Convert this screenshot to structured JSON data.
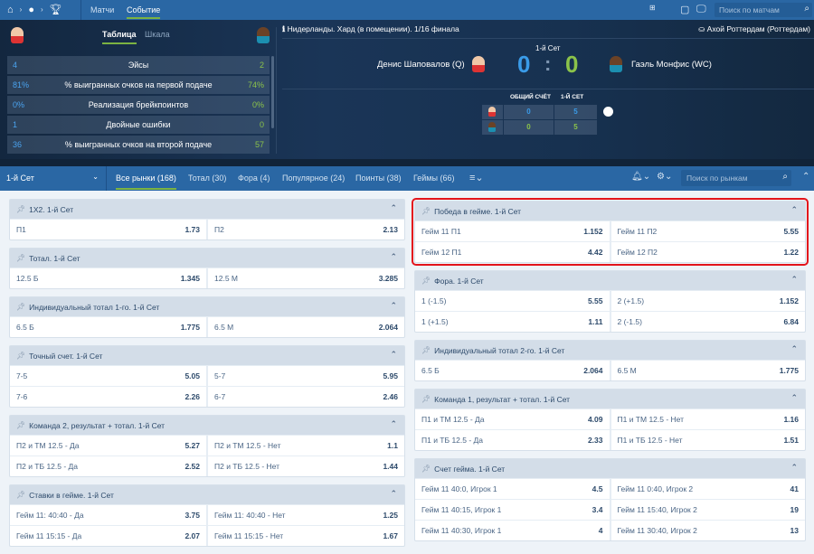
{
  "topnav": {
    "tabs": [
      "Матчи",
      "Событие"
    ],
    "search_placeholder": "Поиск по матчам"
  },
  "stats": {
    "tabs": [
      "Таблица",
      "Шкала"
    ],
    "rows": [
      {
        "l": "4",
        "label": "Эйсы",
        "r": "2"
      },
      {
        "l": "81%",
        "label": "% выигранных очков на первой подаче",
        "r": "74%"
      },
      {
        "l": "0%",
        "label": "Реализация брейкпоинтов",
        "r": "0%"
      },
      {
        "l": "1",
        "label": "Двойные ошибки",
        "r": "0"
      },
      {
        "l": "36",
        "label": "% выигранных очков на второй подаче",
        "r": "57"
      }
    ]
  },
  "match": {
    "info": "Нидерланды. Хард (в помещении). 1/16 финала",
    "venue": "Ахой Роттердам (Роттердам)",
    "set": "1-й Сет",
    "player1": "Денис Шаповалов (Q)",
    "player2": "Гаэль Монфис (WC)",
    "score1": "0",
    "score2": "0",
    "colon": ":",
    "board": {
      "h1": "ОБЩИЙ СЧЁТ",
      "h2": "1-Й СЕТ",
      "p1_total": "0",
      "p1_set": "5",
      "p2_total": "0",
      "p2_set": "5"
    },
    "colors": {
      "p1": "#3a9be8",
      "p2": "#8bc34a"
    }
  },
  "marketbar": {
    "set_select": "1-й Сет",
    "tabs": [
      "Все рынки (168)",
      "Тотал (30)",
      "Фора (4)",
      "Популярное (24)",
      "Поинты (38)",
      "Геймы (66)"
    ],
    "search_placeholder": "Поиск по рынкам"
  },
  "markets": {
    "left": [
      {
        "title": "1X2. 1-й Сет",
        "rows": [
          [
            [
              "П1",
              "1.73"
            ],
            [
              "П2",
              "2.13"
            ]
          ]
        ]
      },
      {
        "title": "Тотал. 1-й Сет",
        "rows": [
          [
            [
              "12.5 Б",
              "1.345"
            ],
            [
              "12.5 М",
              "3.285"
            ]
          ]
        ]
      },
      {
        "title": "Индивидуальный тотал 1-го. 1-й Сет",
        "rows": [
          [
            [
              "6.5 Б",
              "1.775"
            ],
            [
              "6.5 М",
              "2.064"
            ]
          ]
        ]
      },
      {
        "title": "Точный счет. 1-й Сет",
        "rows": [
          [
            [
              "7-5",
              "5.05"
            ],
            [
              "5-7",
              "5.95"
            ]
          ],
          [
            [
              "7-6",
              "2.26"
            ],
            [
              "6-7",
              "2.46"
            ]
          ]
        ]
      },
      {
        "title": "Команда 2, результат + тотал. 1-й Сет",
        "rows": [
          [
            [
              "П2 и ТМ 12.5 - Да",
              "5.27"
            ],
            [
              "П2 и ТМ 12.5 - Нет",
              "1.1"
            ]
          ],
          [
            [
              "П2 и ТБ 12.5 - Да",
              "2.52"
            ],
            [
              "П2 и ТБ 12.5 - Нет",
              "1.44"
            ]
          ]
        ]
      },
      {
        "title": "Ставки в гейме. 1-й Сет",
        "rows": [
          [
            [
              "Гейм 11: 40:40 - Да",
              "3.75"
            ],
            [
              "Гейм 11: 40:40 - Нет",
              "1.25"
            ]
          ],
          [
            [
              "Гейм 11 15:15 - Да",
              "2.07"
            ],
            [
              "Гейм 11 15:15 - Нет",
              "1.67"
            ]
          ]
        ]
      }
    ],
    "right": [
      {
        "title": "Победа в гейме. 1-й Сет",
        "highlight": true,
        "rows": [
          [
            [
              "Гейм 11 П1",
              "1.152"
            ],
            [
              "Гейм 11 П2",
              "5.55"
            ]
          ],
          [
            [
              "Гейм 12 П1",
              "4.42"
            ],
            [
              "Гейм 12 П2",
              "1.22"
            ]
          ]
        ]
      },
      {
        "title": "Фора. 1-й Сет",
        "rows": [
          [
            [
              "1 (-1.5)",
              "5.55"
            ],
            [
              "2 (+1.5)",
              "1.152"
            ]
          ],
          [
            [
              "1 (+1.5)",
              "1.11"
            ],
            [
              "2 (-1.5)",
              "6.84"
            ]
          ]
        ]
      },
      {
        "title": "Индивидуальный тотал 2-го. 1-й Сет",
        "rows": [
          [
            [
              "6.5 Б",
              "2.064"
            ],
            [
              "6.5 М",
              "1.775"
            ]
          ]
        ]
      },
      {
        "title": "Команда 1, результат + тотал. 1-й Сет",
        "rows": [
          [
            [
              "П1 и ТМ 12.5 - Да",
              "4.09"
            ],
            [
              "П1 и ТМ 12.5 - Нет",
              "1.16"
            ]
          ],
          [
            [
              "П1 и ТБ 12.5 - Да",
              "2.33"
            ],
            [
              "П1 и ТБ 12.5 - Нет",
              "1.51"
            ]
          ]
        ]
      },
      {
        "title": "Счет гейма. 1-й Сет",
        "rows": [
          [
            [
              "Гейм 11 40:0, Игрок 1",
              "4.5"
            ],
            [
              "Гейм 11 0:40, Игрок 2",
              "41"
            ]
          ],
          [
            [
              "Гейм 11 40:15, Игрок 1",
              "3.4"
            ],
            [
              "Гейм 11 15:40, Игрок 2",
              "19"
            ]
          ],
          [
            [
              "Гейм 11 40:30, Игрок 1",
              "4"
            ],
            [
              "Гейм 11 30:40, Игрок 2",
              "13"
            ]
          ]
        ]
      }
    ]
  }
}
